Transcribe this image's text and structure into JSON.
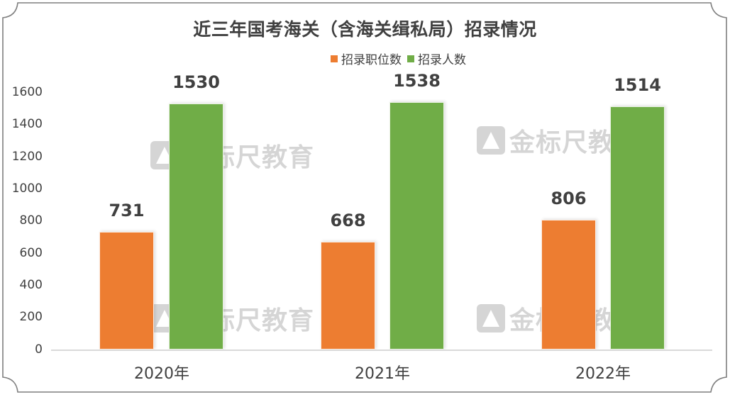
{
  "title": "近三年国考海关（含海关缉私局）招录情况",
  "legend": [
    {
      "label": "招录职位数",
      "color": "#ED7D31"
    },
    {
      "label": "招录人数",
      "color": "#70AD47"
    }
  ],
  "watermark": "金标尺教育",
  "y_ticks": [
    "1600",
    "1400",
    "1200",
    "1000",
    "800",
    "600",
    "400",
    "200",
    "0"
  ],
  "x_labels": [
    "2020年",
    "2021年",
    "2022年"
  ],
  "data_labels": {
    "positions": [
      "731",
      "668",
      "806"
    ],
    "people": [
      "1530",
      "1538",
      "1514"
    ]
  },
  "chart_data": {
    "type": "bar",
    "title": "近三年国考海关（含海关缉私局）招录情况",
    "categories": [
      "2020年",
      "2021年",
      "2022年"
    ],
    "series": [
      {
        "name": "招录职位数",
        "color": "#ED7D31",
        "values": [
          731,
          668,
          806
        ]
      },
      {
        "name": "招录人数",
        "color": "#70AD47",
        "values": [
          1530,
          1538,
          1514
        ]
      }
    ],
    "xlabel": "",
    "ylabel": "",
    "ylim": [
      0,
      1600
    ],
    "y_tick_step": 200,
    "grid": false,
    "legend_position": "top",
    "data_labels": true
  }
}
